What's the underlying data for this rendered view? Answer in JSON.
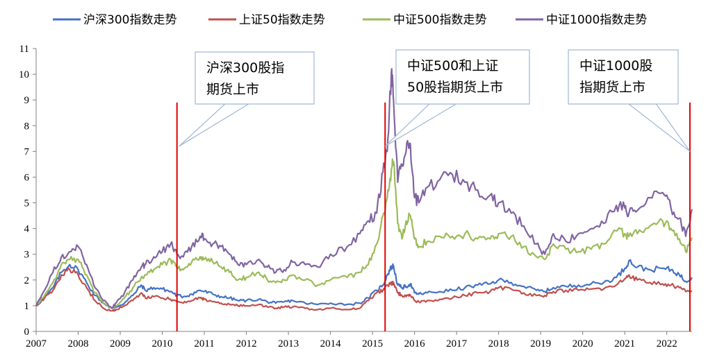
{
  "chart_data": {
    "type": "line",
    "title": "",
    "xlabel": "",
    "ylabel": "",
    "xlim": [
      2007.0,
      2022.6
    ],
    "ylim": [
      0,
      11
    ],
    "yticks": [
      "0",
      "1",
      "2",
      "3",
      "4",
      "5",
      "6",
      "7",
      "8",
      "9",
      "10",
      "11"
    ],
    "xticks": [
      "2007",
      "2008",
      "2009",
      "2010",
      "2011",
      "2012",
      "2013",
      "2014",
      "2015",
      "2016",
      "2017",
      "2018",
      "2019",
      "2020",
      "2021",
      "2022"
    ],
    "series": [
      {
        "name": "沪深300指数走势",
        "color": "#4472C4",
        "x": [
          2007.0,
          2007.2,
          2007.4,
          2007.6,
          2007.8,
          2008.0,
          2008.2,
          2008.4,
          2008.6,
          2008.8,
          2008.9,
          2009.1,
          2009.3,
          2009.5,
          2009.6,
          2009.8,
          2010.0,
          2010.2,
          2010.35,
          2010.5,
          2010.7,
          2010.9,
          2011.0,
          2011.2,
          2011.4,
          2011.6,
          2011.8,
          2012.0,
          2012.3,
          2012.5,
          2012.7,
          2012.9,
          2013.1,
          2013.4,
          2013.7,
          2014.0,
          2014.4,
          2014.7,
          2014.9,
          2015.1,
          2015.25,
          2015.35,
          2015.45,
          2015.5,
          2015.6,
          2015.7,
          2015.8,
          2015.9,
          2016.0,
          2016.1,
          2016.3,
          2016.6,
          2016.9,
          2017.2,
          2017.5,
          2017.8,
          2018.0,
          2018.3,
          2018.6,
          2018.9,
          2019.1,
          2019.3,
          2019.6,
          2019.9,
          2020.2,
          2020.5,
          2020.8,
          2021.0,
          2021.1,
          2021.3,
          2021.6,
          2021.9,
          2022.1,
          2022.3,
          2022.45,
          2022.6
        ],
        "values": [
          1.0,
          1.3,
          1.7,
          2.3,
          2.6,
          2.4,
          1.9,
          1.4,
          1.1,
          0.9,
          0.95,
          1.1,
          1.4,
          1.8,
          1.6,
          1.7,
          1.65,
          1.55,
          1.4,
          1.35,
          1.45,
          1.6,
          1.55,
          1.45,
          1.35,
          1.3,
          1.2,
          1.2,
          1.25,
          1.15,
          1.1,
          1.15,
          1.2,
          1.1,
          1.05,
          1.1,
          1.05,
          1.1,
          1.3,
          1.6,
          1.8,
          2.2,
          2.5,
          2.55,
          1.8,
          1.7,
          1.75,
          1.85,
          1.5,
          1.45,
          1.5,
          1.55,
          1.6,
          1.7,
          1.8,
          1.85,
          2.0,
          1.9,
          1.75,
          1.6,
          1.55,
          1.7,
          1.75,
          1.8,
          1.85,
          1.9,
          2.1,
          2.45,
          2.75,
          2.5,
          2.4,
          2.45,
          2.4,
          2.2,
          1.95,
          2.1
        ]
      },
      {
        "name": "上证50指数走势",
        "color": "#C0504D",
        "x": [
          2007.0,
          2007.2,
          2007.4,
          2007.6,
          2007.8,
          2008.0,
          2008.2,
          2008.4,
          2008.6,
          2008.8,
          2008.9,
          2009.1,
          2009.3,
          2009.5,
          2009.6,
          2009.8,
          2010.0,
          2010.2,
          2010.35,
          2010.5,
          2010.7,
          2010.9,
          2011.0,
          2011.2,
          2011.4,
          2011.6,
          2011.8,
          2012.0,
          2012.3,
          2012.5,
          2012.7,
          2012.9,
          2013.1,
          2013.4,
          2013.7,
          2014.0,
          2014.4,
          2014.7,
          2014.9,
          2015.1,
          2015.25,
          2015.35,
          2015.45,
          2015.5,
          2015.6,
          2015.7,
          2015.8,
          2015.9,
          2016.0,
          2016.1,
          2016.3,
          2016.6,
          2016.9,
          2017.2,
          2017.5,
          2017.8,
          2018.0,
          2018.3,
          2018.6,
          2018.9,
          2019.1,
          2019.3,
          2019.6,
          2019.9,
          2020.2,
          2020.5,
          2020.8,
          2021.0,
          2021.1,
          2021.3,
          2021.6,
          2021.9,
          2022.1,
          2022.3,
          2022.45,
          2022.6
        ],
        "values": [
          1.0,
          1.3,
          1.6,
          2.2,
          2.4,
          2.2,
          1.7,
          1.2,
          0.9,
          0.8,
          0.85,
          1.0,
          1.2,
          1.5,
          1.3,
          1.35,
          1.3,
          1.25,
          1.15,
          1.1,
          1.2,
          1.3,
          1.25,
          1.15,
          1.1,
          1.05,
          1.0,
          1.0,
          1.05,
          0.95,
          0.9,
          0.95,
          0.95,
          0.9,
          0.85,
          0.9,
          0.85,
          0.9,
          1.2,
          1.5,
          1.6,
          1.8,
          1.85,
          1.9,
          1.5,
          1.4,
          1.35,
          1.4,
          1.2,
          1.15,
          1.2,
          1.25,
          1.3,
          1.4,
          1.5,
          1.55,
          1.7,
          1.65,
          1.5,
          1.4,
          1.4,
          1.55,
          1.6,
          1.6,
          1.65,
          1.65,
          1.8,
          2.05,
          2.2,
          2.0,
          1.9,
          1.85,
          1.8,
          1.7,
          1.55,
          1.55
        ]
      },
      {
        "name": "中证500指数走势",
        "color": "#9BBB59",
        "x": [
          2007.0,
          2007.2,
          2007.4,
          2007.6,
          2007.8,
          2008.0,
          2008.2,
          2008.4,
          2008.6,
          2008.8,
          2008.9,
          2009.1,
          2009.3,
          2009.5,
          2009.6,
          2009.8,
          2010.0,
          2010.2,
          2010.35,
          2010.5,
          2010.7,
          2010.9,
          2011.0,
          2011.2,
          2011.4,
          2011.6,
          2011.8,
          2012.0,
          2012.3,
          2012.5,
          2012.7,
          2012.9,
          2013.1,
          2013.4,
          2013.7,
          2014.0,
          2014.4,
          2014.7,
          2014.9,
          2015.1,
          2015.25,
          2015.35,
          2015.45,
          2015.5,
          2015.6,
          2015.7,
          2015.8,
          2015.9,
          2016.0,
          2016.1,
          2016.3,
          2016.6,
          2016.9,
          2017.2,
          2017.5,
          2017.8,
          2018.0,
          2018.3,
          2018.6,
          2018.9,
          2019.1,
          2019.3,
          2019.6,
          2019.9,
          2020.2,
          2020.5,
          2020.8,
          2021.0,
          2021.1,
          2021.3,
          2021.6,
          2021.9,
          2022.1,
          2022.3,
          2022.45,
          2022.6
        ],
        "values": [
          1.0,
          1.4,
          1.9,
          2.6,
          2.8,
          2.8,
          2.2,
          1.5,
          1.1,
          0.9,
          1.0,
          1.3,
          1.7,
          2.1,
          2.2,
          2.4,
          2.6,
          2.8,
          2.5,
          2.4,
          2.7,
          2.9,
          2.8,
          2.7,
          2.5,
          2.3,
          2.0,
          2.1,
          2.3,
          2.0,
          1.9,
          2.0,
          2.2,
          2.0,
          1.8,
          2.0,
          2.1,
          2.3,
          2.6,
          3.4,
          4.5,
          5.2,
          6.3,
          6.6,
          4.2,
          3.6,
          4.3,
          4.5,
          3.6,
          3.3,
          3.5,
          3.7,
          3.7,
          3.8,
          3.6,
          3.6,
          3.8,
          3.7,
          3.3,
          2.9,
          2.8,
          3.4,
          3.2,
          3.1,
          3.2,
          3.4,
          3.9,
          3.8,
          3.7,
          3.8,
          4.1,
          4.3,
          4.0,
          3.6,
          3.1,
          3.65
        ]
      },
      {
        "name": "中证1000指数走势",
        "color": "#8064A2",
        "x": [
          2007.0,
          2007.2,
          2007.4,
          2007.6,
          2007.8,
          2008.0,
          2008.2,
          2008.4,
          2008.6,
          2008.8,
          2008.9,
          2009.1,
          2009.3,
          2009.5,
          2009.6,
          2009.8,
          2010.0,
          2010.2,
          2010.35,
          2010.5,
          2010.7,
          2010.9,
          2011.0,
          2011.2,
          2011.4,
          2011.6,
          2011.8,
          2012.0,
          2012.3,
          2012.5,
          2012.7,
          2012.9,
          2013.1,
          2013.4,
          2013.7,
          2014.0,
          2014.4,
          2014.7,
          2014.9,
          2015.1,
          2015.25,
          2015.35,
          2015.45,
          2015.5,
          2015.6,
          2015.7,
          2015.8,
          2015.9,
          2016.0,
          2016.1,
          2016.3,
          2016.6,
          2016.9,
          2017.2,
          2017.5,
          2017.8,
          2018.0,
          2018.3,
          2018.6,
          2018.9,
          2019.1,
          2019.3,
          2019.6,
          2019.9,
          2020.2,
          2020.5,
          2020.8,
          2021.0,
          2021.1,
          2021.3,
          2021.6,
          2021.9,
          2022.1,
          2022.3,
          2022.45,
          2022.6
        ],
        "values": [
          1.0,
          1.6,
          2.3,
          2.9,
          3.1,
          3.3,
          2.6,
          1.7,
          1.2,
          0.9,
          1.1,
          1.5,
          2.0,
          2.5,
          2.6,
          2.9,
          3.1,
          3.4,
          3.0,
          2.9,
          3.3,
          3.7,
          3.6,
          3.4,
          3.3,
          3.0,
          2.6,
          2.6,
          2.8,
          2.5,
          2.3,
          2.4,
          2.7,
          2.6,
          2.5,
          3.0,
          3.3,
          3.8,
          4.3,
          4.6,
          6.2,
          7.0,
          10.1,
          9.0,
          5.8,
          6.5,
          7.0,
          7.3,
          5.2,
          5.0,
          5.6,
          5.9,
          6.1,
          5.8,
          5.5,
          5.3,
          5.0,
          4.6,
          4.1,
          3.4,
          3.0,
          3.8,
          3.5,
          3.8,
          4.0,
          4.2,
          4.9,
          4.8,
          4.6,
          4.7,
          5.2,
          5.4,
          4.8,
          4.4,
          3.7,
          4.75
        ]
      }
    ],
    "markers": [
      {
        "x": 2010.35,
        "y_top": 8.9,
        "label": "沪深300股指期货上市"
      },
      {
        "x": 2015.3,
        "y_top": 8.9,
        "label": "中证500和上证50股指期货上市"
      },
      {
        "x": 2022.55,
        "y_top": 8.9,
        "label": "中证1000股指期货上市"
      }
    ],
    "callouts": [
      {
        "lines": [
          "沪深300股指",
          "期货上市"
        ],
        "points_to": [
          2010.4,
          7.2
        ]
      },
      {
        "lines": [
          "中证500和上证",
          "50股指期货上市"
        ],
        "points_to": [
          2015.3,
          7.2
        ]
      },
      {
        "lines": [
          "中证1000股",
          "指期货上市"
        ],
        "points_to": [
          2022.55,
          7.0
        ]
      }
    ],
    "marker_color": "#E00000",
    "legend_position": "top"
  }
}
